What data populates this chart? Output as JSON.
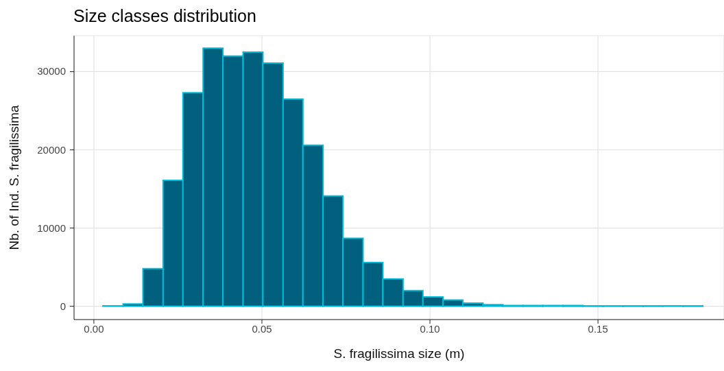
{
  "chart_data": {
    "type": "histogram",
    "title": "Size classes distribution",
    "xlabel": "S. fragilissima size (m)",
    "ylabel": "Nb. of Ind. S. fragilissima",
    "bins": [
      0.0027,
      0.0087,
      0.0146,
      0.0206,
      0.0265,
      0.0325,
      0.0384,
      0.0444,
      0.0503,
      0.0563,
      0.0622,
      0.0682,
      0.0741,
      0.0801,
      0.086,
      0.092,
      0.0979,
      0.1039,
      0.1098,
      0.1158,
      0.1217,
      0.1277,
      0.1336,
      0.1396,
      0.1455,
      0.1515,
      0.1574,
      0.1634,
      0.1693,
      0.1753,
      0.1812
    ],
    "values": [
      50,
      300,
      4800,
      16100,
      27300,
      33000,
      32000,
      32500,
      31100,
      26500,
      20600,
      14100,
      8700,
      5600,
      3500,
      2000,
      1200,
      800,
      400,
      200,
      100,
      100,
      100,
      100,
      50,
      50,
      50,
      50,
      50,
      50
    ],
    "color": "#00607d",
    "xlim": [
      -0.0059,
      0.1875
    ],
    "xticks": [
      {
        "value": 0,
        "label": "0.00"
      },
      {
        "value": 0.05,
        "label": "0.05"
      },
      {
        "value": 0.1,
        "label": "0.10"
      },
      {
        "value": 0.15,
        "label": "0.15"
      }
    ],
    "ylim": [
      -1700,
      34600
    ],
    "yticks": [
      0,
      10000,
      20000,
      30000
    ],
    "grid": true
  }
}
